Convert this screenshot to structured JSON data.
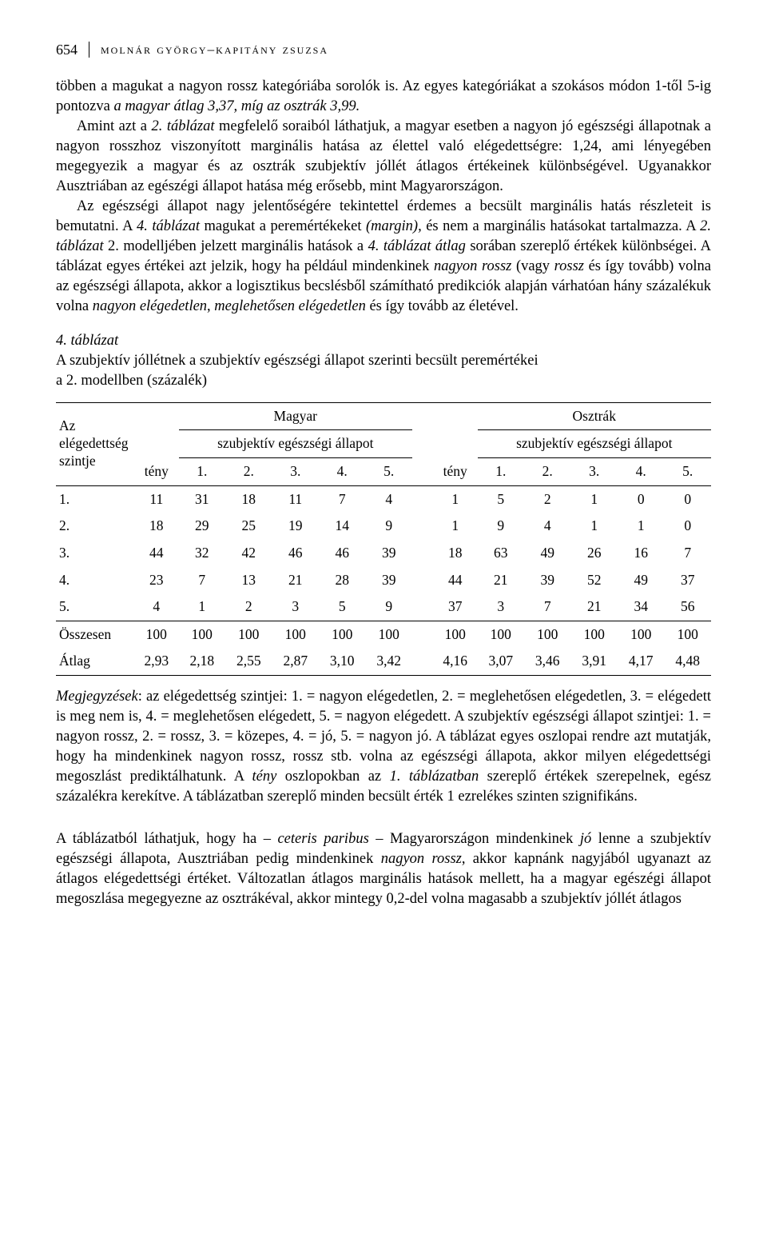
{
  "header": {
    "page_number": "654",
    "authors": "MOLNÁR GYÖRGY–KAPITÁNY ZSUZSA"
  },
  "paragraphs": {
    "p1_a": "többen a magukat a nagyon rossz kategóriába sorolók is. Az egyes kategóriákat a szokásos módon 1-től 5-ig pontozva ",
    "p1_b": "a magyar átlag 3,37, míg az osztrák 3,99.",
    "p2_a": "Amint azt a ",
    "p2_b": "2. táblázat",
    "p2_c": " megfelelő soraiból láthatjuk, a magyar esetben a nagyon jó egészségi állapotnak a nagyon rosszhoz viszonyított marginális hatása az élettel való elégedettségre: 1,24, ami lényegében megegyezik a magyar és az osztrák szubjektív jóllét átlagos értékeinek különbségével. Ugyanakkor Ausztriában az egészégi állapot hatása még erősebb, mint Magyarországon.",
    "p3_a": "Az egészségi állapot nagy jelentőségére tekintettel érdemes a becsült marginális hatás részleteit is bemutatni. A ",
    "p3_b": "4. táblázat",
    "p3_c": " magukat a peremértékeket ",
    "p3_d": "(margin),",
    "p3_e": " és nem a marginális hatásokat tartalmazza. A ",
    "p3_f": "2. táblázat",
    "p3_g": " 2. modelljében jelzett marginális hatások a ",
    "p3_h": "4. táblázat átlag",
    "p3_i": " sorában szereplő értékek különbségei. A táblázat egyes értékei azt jelzik, hogy ha például mindenkinek ",
    "p3_j": "nagyon rossz",
    "p3_k": " (vagy ",
    "p3_l": "rossz",
    "p3_m": " és így tovább) volna az egészségi állapota, akkor a logisztikus becslésből számítható predikciók alapján várhatóan hány százalékuk volna ",
    "p3_n": "nagyon elégedetlen",
    "p3_o": ", ",
    "p3_p": "meglehetősen elégedetlen",
    "p3_q": " és így tovább az életével."
  },
  "table": {
    "number": "4. táblázat",
    "caption_a": "A szubjektív jóllétnek a szubjektív egészségi állapot szerinti becsült peremértékei",
    "caption_b": "a 2. modellben (százalék)",
    "rowlabel_a": "Az elégedettség szintje",
    "col_group_hu": "Magyar",
    "col_group_at": "Osztrák",
    "sub_header": "szubjektív egészségi állapot",
    "teny": "tény",
    "cols": [
      "1.",
      "2.",
      "3.",
      "4.",
      "5."
    ],
    "rows": [
      {
        "label": "1.",
        "teny_hu": "11",
        "hu": [
          "31",
          "18",
          "11",
          "7",
          "4"
        ],
        "teny_at": "1",
        "at": [
          "5",
          "2",
          "1",
          "0",
          "0"
        ]
      },
      {
        "label": "2.",
        "teny_hu": "18",
        "hu": [
          "29",
          "25",
          "19",
          "14",
          "9"
        ],
        "teny_at": "1",
        "at": [
          "9",
          "4",
          "1",
          "1",
          "0"
        ]
      },
      {
        "label": "3.",
        "teny_hu": "44",
        "hu": [
          "32",
          "42",
          "46",
          "46",
          "39"
        ],
        "teny_at": "18",
        "at": [
          "63",
          "49",
          "26",
          "16",
          "7"
        ]
      },
      {
        "label": "4.",
        "teny_hu": "23",
        "hu": [
          "7",
          "13",
          "21",
          "28",
          "39"
        ],
        "teny_at": "44",
        "at": [
          "21",
          "39",
          "52",
          "49",
          "37"
        ]
      },
      {
        "label": "5.",
        "teny_hu": "4",
        "hu": [
          "1",
          "2",
          "3",
          "5",
          "9"
        ],
        "teny_at": "37",
        "at": [
          "3",
          "7",
          "21",
          "34",
          "56"
        ]
      }
    ],
    "sum_label": "Összesen",
    "sum": {
      "teny_hu": "100",
      "hu": [
        "100",
        "100",
        "100",
        "100",
        "100"
      ],
      "teny_at": "100",
      "at": [
        "100",
        "100",
        "100",
        "100",
        "100"
      ]
    },
    "avg_label": "Átlag",
    "avg": {
      "teny_hu": "2,93",
      "hu": [
        "2,18",
        "2,55",
        "2,87",
        "3,10",
        "3,42"
      ],
      "teny_at": "4,16",
      "at": [
        "3,07",
        "3,46",
        "3,91",
        "4,17",
        "4,48"
      ]
    }
  },
  "notes": {
    "a": "Megjegyzések",
    "b": ": az elégedettség szintjei: 1. = nagyon elégedetlen, 2. = meglehetősen elégedetlen, 3. = elégedett is meg nem is, 4. = meglehetősen elégedett, 5. = nagyon elégedett. A szubjektív egészségi állapot szintjei: 1. = nagyon rossz, 2. = rossz, 3. = közepes, 4. = jó, 5. = nagyon jó. A táblázat egyes oszlopai rendre azt mutatják, hogy ha mindenkinek nagyon rossz, rossz stb. volna az egészségi állapota, akkor milyen elégedettségi megoszlást prediktálhatunk. A ",
    "c": "tény",
    "d": " oszlopokban az ",
    "e": "1. táblázatban",
    "f": " szereplő értékek szerepelnek, egész százalékra kerekítve. A táblázatban szereplő minden becsült érték 1 ezrelékes szinten szignifikáns."
  },
  "final": {
    "a": "A táblázatból láthatjuk, hogy ha – ",
    "b": "ceteris paribus",
    "c": " – Magyarországon mindenkinek ",
    "d": "jó",
    "e": " lenne a szubjektív egészségi állapota, Ausztriában pedig mindenkinek ",
    "f": "nagyon rossz",
    "g": ", akkor kapnánk nagyjából ugyanazt az átlagos elégedettségi értéket. Változatlan átlagos marginális hatások mellett, ha a magyar egészégi állapot megoszlása megegyezne az osztrákéval, akkor mintegy 0,2-del volna magasabb a szubjektív jóllét átlagos"
  }
}
